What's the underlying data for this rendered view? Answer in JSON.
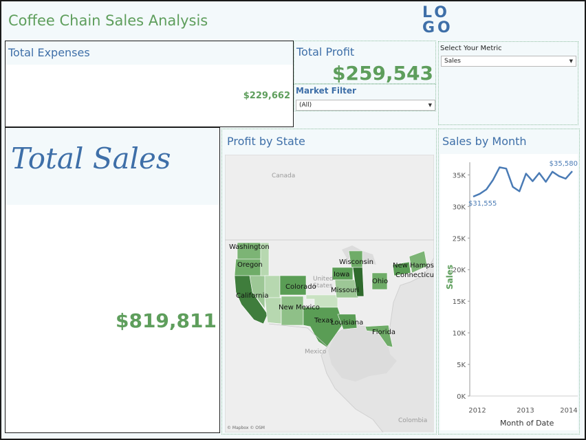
{
  "dashboard": {
    "title": "Coffee Chain Sales Analysis",
    "logo_top": "LO",
    "logo_bottom": "GO"
  },
  "total_expenses": {
    "title": "Total Expenses",
    "value": "$229,662"
  },
  "total_profit": {
    "title": "Total Profit",
    "value": "$259,543"
  },
  "market_filter": {
    "label": "Market Filter",
    "selected": "(All)"
  },
  "metric": {
    "label": "Select Your Metric",
    "selected": "Sales"
  },
  "total_sales": {
    "title": "Total Sales",
    "value": "$819,811"
  },
  "profit_by_state": {
    "title": "Profit by State",
    "attribution": "© Mapbox © OSM",
    "geo_labels": {
      "canada": "Canada",
      "united_states": "United States",
      "mexico": "Mexico",
      "colombia": "Colombia"
    },
    "state_labels": {
      "washington": "Washington",
      "oregon": "Oregon",
      "california": "California",
      "colorado": "Colorado",
      "new_mexico": "New Mexico",
      "texas": "Texas",
      "louisiana": "Louisiana",
      "florida": "Florida",
      "wisconsin": "Wisconsin",
      "iowa": "Iowa",
      "missouri": "Missouri",
      "ohio": "Ohio",
      "new_hampshire": "New Hampsh",
      "connecticut": "Connecticut"
    }
  },
  "sales_by_month": {
    "title": "Sales by Month",
    "xlabel": "Month of Date",
    "ylabel": "Sales",
    "max_label": "$35,580",
    "min_label": "$31,555"
  },
  "chart_data": {
    "type": "line",
    "title": "Sales by Month",
    "xlabel": "Month of Date",
    "ylabel": "Sales",
    "x_ticks": [
      "2012",
      "2013",
      "2014"
    ],
    "y_ticks": [
      "0K",
      "5K",
      "10K",
      "15K",
      "20K",
      "25K",
      "30K",
      "35K"
    ],
    "ylim": [
      0,
      37000
    ],
    "series": [
      {
        "name": "Sales",
        "values": [
          31555,
          32000,
          32700,
          34200,
          36200,
          36000,
          33100,
          32400,
          35200,
          34000,
          35300,
          33900,
          35500,
          34800,
          34400,
          35580
        ]
      }
    ],
    "annotations": [
      "$31,555",
      "$35,580"
    ]
  },
  "colors": {
    "accent_green": "#5e9e5c",
    "title_blue": "#3e6fa8",
    "line_blue": "#4a7bb5"
  }
}
